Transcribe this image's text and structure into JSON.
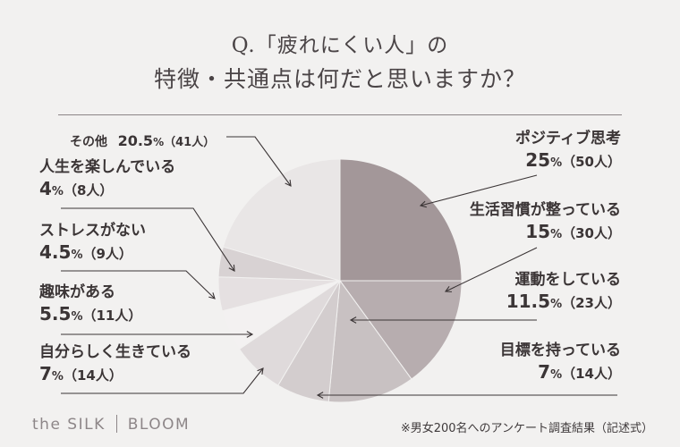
{
  "title": {
    "line1": "Q.「疲れにくい人」の",
    "line2": "特徴・共通点は何だと思いますか？"
  },
  "chart_data": {
    "type": "pie",
    "title": "Q.「疲れにくい人」の特徴・共通点は何だと思いますか？",
    "slices": [
      {
        "label": "ポジティブ思考",
        "percent": "25",
        "count": "50",
        "color": "#a39799"
      },
      {
        "label": "生活習慣が整っている",
        "percent": "15",
        "count": "30",
        "color": "#b7adaf"
      },
      {
        "label": "運動をしている",
        "percent": "11.5",
        "count": "23",
        "color": "#c8c1c2"
      },
      {
        "label": "目標を持っている",
        "percent": "7",
        "count": "14",
        "color": "#d3cdce"
      },
      {
        "label": "自分らしく生きている",
        "percent": "7",
        "count": "14",
        "color": "#dfdadb"
      },
      {
        "label": "趣味がある",
        "percent": "5.5",
        "count": "11",
        "color": "#f3f1f1"
      },
      {
        "label": "ストレスがない",
        "percent": "4.5",
        "count": "9",
        "color": "#e5e0e1"
      },
      {
        "label": "人生を楽しんでいる",
        "percent": "4",
        "count": "8",
        "color": "#d8d2d3"
      },
      {
        "label": "その他",
        "percent": "20.5",
        "count": "41",
        "color": "#e9e6e6"
      }
    ]
  },
  "units": {
    "pct": "%",
    "cnt_prefix": "（",
    "cnt_suffix": "人）"
  },
  "brand": {
    "left": "the SILK",
    "right": "BLOOM"
  },
  "footnote": "※男女200名へのアンケート調査結果（記述式）"
}
